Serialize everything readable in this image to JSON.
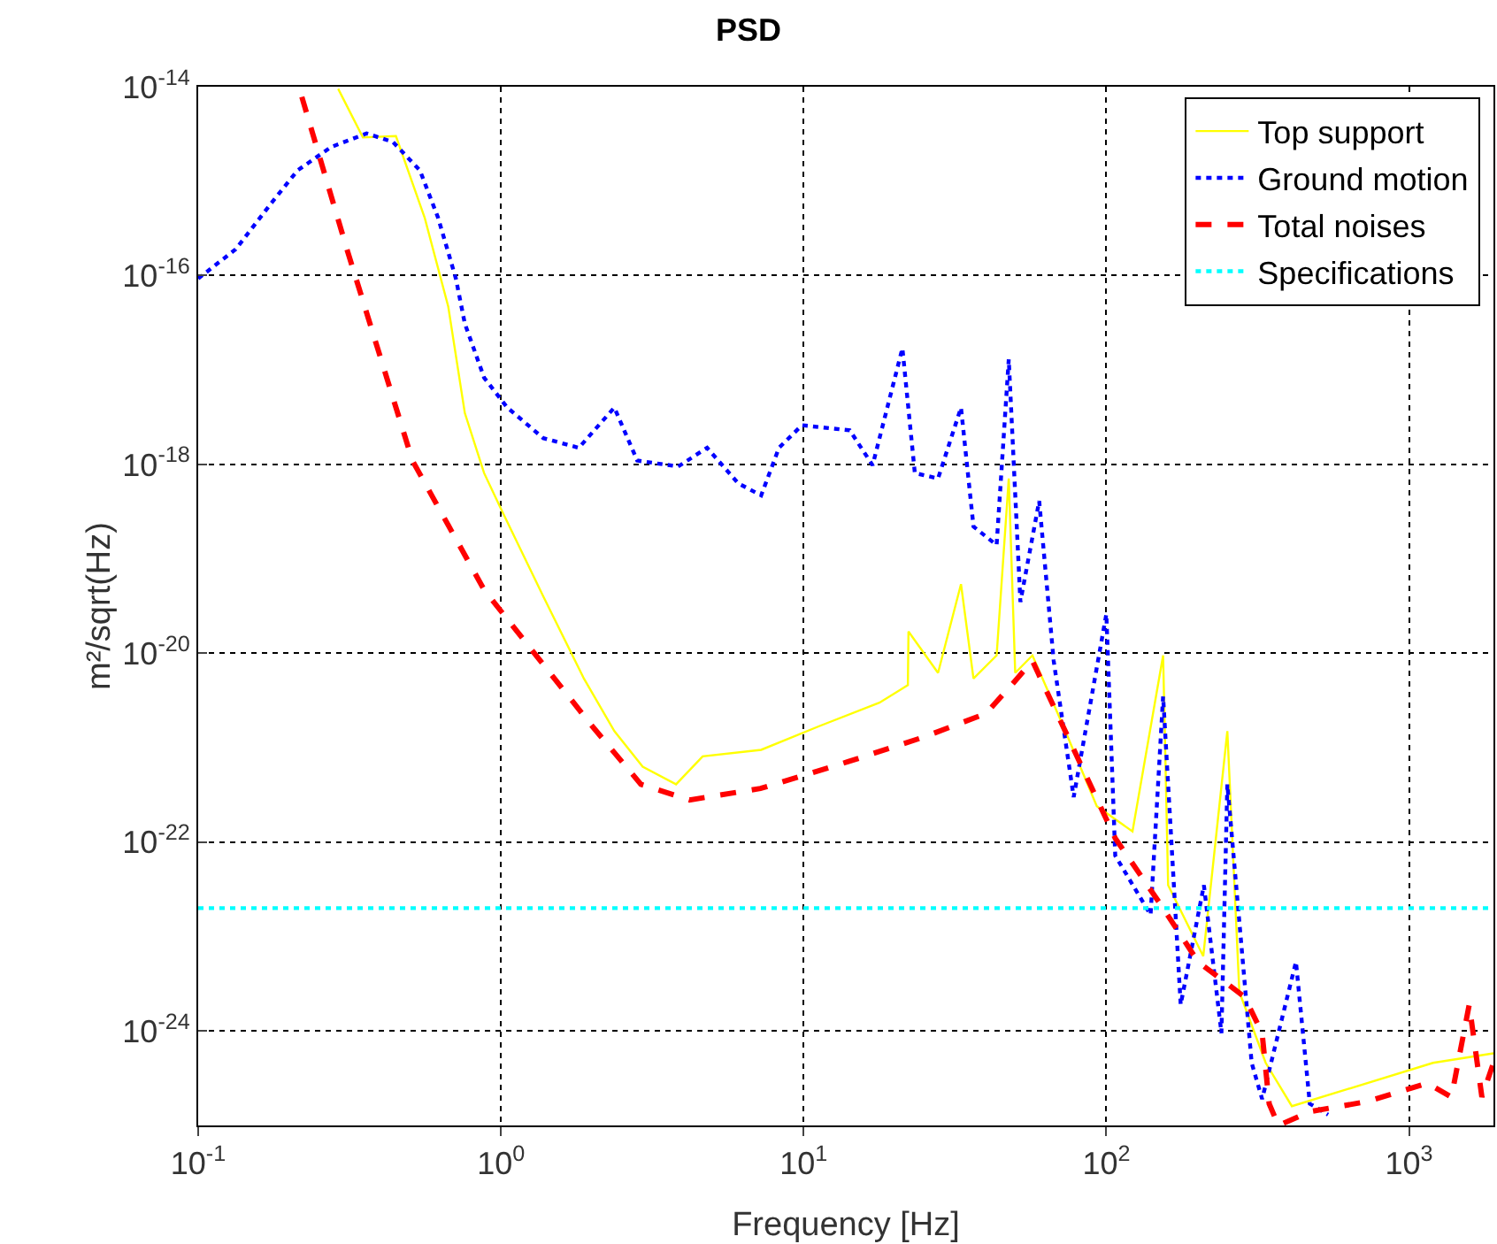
{
  "chart_data": {
    "type": "line",
    "title": "PSD",
    "xlabel": "Frequency [Hz]",
    "ylabel": "m²/sqrt(Hz)",
    "log": "xy",
    "grid": true,
    "legend": "top right",
    "marker": "none",
    "xlim": [
      0.1,
      1900
    ],
    "ylim": [
      1e-25,
      1e-14
    ],
    "xticks": [
      {
        "value": 0.1,
        "label": "10$^{-1}$"
      },
      {
        "value": 1,
        "label": "10$^{0}$"
      },
      {
        "value": 10,
        "label": "10$^{1}$"
      },
      {
        "value": 100,
        "label": "10$^{2}$"
      },
      {
        "value": 1000,
        "label": "10$^{3}$"
      }
    ],
    "yticks": [
      {
        "value": 1e-24,
        "label": "10$^{-24}$"
      },
      {
        "value": 1e-22,
        "label": "10$^{-22}$"
      },
      {
        "value": 1e-20,
        "label": "10$^{-20}$"
      },
      {
        "value": 1e-18,
        "label": "10$^{-18}$"
      },
      {
        "value": 1e-16,
        "label": "10$^{-16}$"
      },
      {
        "value": 1e-14,
        "label": "10$^{-14}$"
      }
    ],
    "series": [
      {
        "name": "Top support",
        "color": "#ffff00",
        "line_style": "solid",
        "x": [
          0.29,
          0.35,
          0.45,
          0.56,
          0.67,
          0.76,
          0.88,
          1.0,
          1.38,
          1.88,
          2.37,
          2.94,
          3.79,
          4.64,
          7.24,
          11.3,
          17.8,
          22.1,
          22.2,
          27.8,
          33.1,
          36.4,
          43.4,
          47.6,
          50,
          57,
          72,
          93,
          122,
          154,
          160,
          209,
          251,
          275,
          336,
          410,
          620,
          1200,
          1900
        ],
        "values": [
          9.5e-15,
          2.9e-15,
          3e-15,
          4.1e-16,
          4.7e-17,
          3.5e-18,
          8.1e-19,
          3.4e-19,
          4e-20,
          5.4e-21,
          1.5e-21,
          6.3e-22,
          4.1e-22,
          8.1e-22,
          9.5e-22,
          1.7e-21,
          3e-21,
          4.6e-21,
          1.7e-20,
          6.2e-21,
          5.4e-20,
          5.4e-21,
          9.5e-21,
          7.1e-19,
          6.2e-21,
          9.5e-21,
          1.7e-21,
          2.4e-22,
          1.3e-22,
          9.5e-21,
          3.5e-23,
          6.2e-24,
          1.5e-21,
          2.6e-24,
          4.6e-25,
          1.6e-25,
          2.4e-25,
          4.6e-25,
          5.8e-25
        ]
      },
      {
        "name": "Ground motion",
        "color": "#0000ff",
        "line_style": "dotted",
        "x": [
          0.1,
          0.133,
          0.174,
          0.213,
          0.275,
          0.36,
          0.44,
          0.54,
          0.62,
          0.71,
          0.76,
          0.88,
          1.05,
          1.38,
          1.81,
          2.37,
          2.82,
          3.85,
          4.8,
          6.08,
          7.24,
          8.29,
          9.87,
          14.2,
          16.9,
          21.2,
          23.3,
          27.8,
          33.1,
          36.4,
          43.4,
          47.6,
          52,
          60,
          67,
          78,
          100,
          107,
          140,
          154,
          176,
          210,
          240,
          251,
          302,
          327,
          423,
          470,
          540
        ],
        "values": [
          9.3e-17,
          1.9e-16,
          5.8e-16,
          1.3e-15,
          2.3e-15,
          3.2e-15,
          2.6e-15,
          1.3e-15,
          4.1e-16,
          9.3e-17,
          3.1e-17,
          8.3e-18,
          4e-18,
          1.9e-18,
          1.5e-18,
          4e-18,
          1.1e-18,
          9.5e-19,
          1.5e-18,
          6.3e-19,
          4.7e-19,
          1.5e-18,
          2.6e-18,
          2.3e-18,
          9.8e-19,
          1.7e-17,
          8.1e-19,
          7.1e-19,
          4e-18,
          2.2e-19,
          1.4e-19,
          1.3e-17,
          3.5e-20,
          4.1e-19,
          8.3e-21,
          3e-22,
          2.6e-20,
          7.2e-23,
          1.7e-23,
          3.5e-21,
          1.9e-24,
          3.5e-23,
          9.5e-25,
          4.1e-22,
          4.6e-25,
          1.9e-25,
          5.4e-24,
          1.7e-25,
          1.3e-25
        ]
      },
      {
        "name": "Total noises",
        "color": "#ff0000",
        "line_style": "dashed",
        "x": [
          0.22,
          0.31,
          0.51,
          0.88,
          2.0,
          2.9,
          4.2,
          7.2,
          14,
          25,
          40,
          48,
          57,
          107,
          154,
          201,
          286,
          327,
          345,
          370,
          470,
          733,
          1150,
          1380,
          1580,
          1740,
          1900
        ],
        "values": [
          7.8e-15,
          1.9e-16,
          1.1e-18,
          4.7e-20,
          1.7e-21,
          4.1e-22,
          2.8e-22,
          3.7e-22,
          7.1e-22,
          1.3e-21,
          2.3e-21,
          4.4e-21,
          8.3e-21,
          1.1e-22,
          2e-23,
          5.4e-24,
          2.3e-24,
          9.5e-25,
          1.7e-25,
          1e-25,
          1.4e-25,
          1.8e-25,
          2.8e-25,
          2e-25,
          1.9e-24,
          2e-25,
          4.6e-25
        ]
      },
      {
        "name": "Specifications",
        "color": "#00ffff",
        "line_style": "dotted",
        "x": [
          0.1,
          1900
        ],
        "values": [
          2e-23,
          2e-23
        ]
      }
    ]
  }
}
